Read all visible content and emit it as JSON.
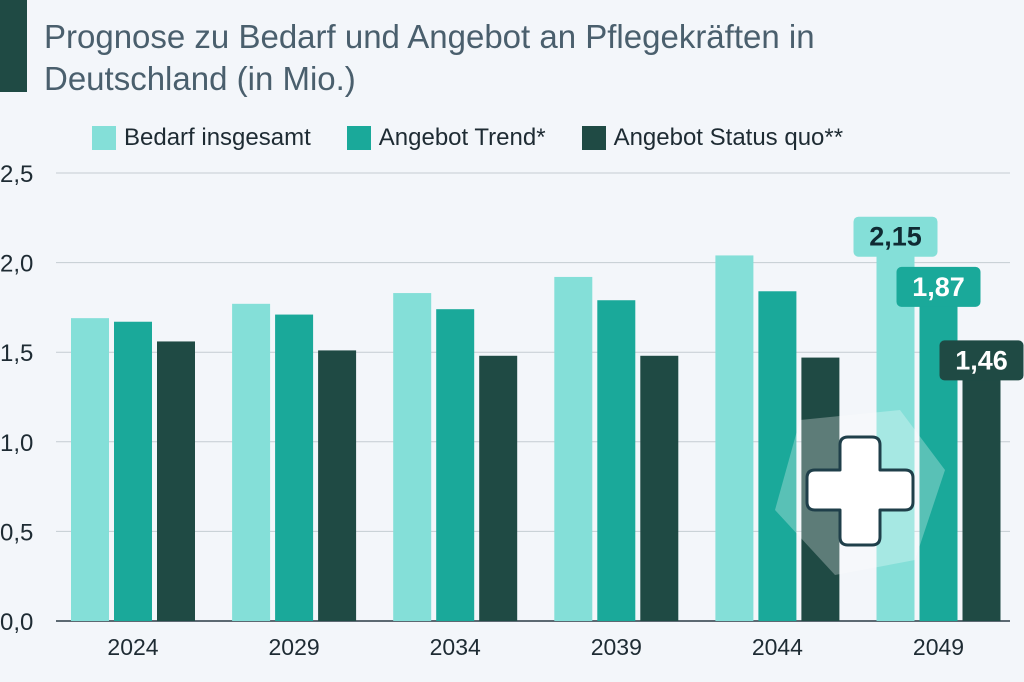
{
  "subtitle": "Prognose zu Bedarf und Angebot an Pflegekräften in Deutschland (in Mio.)",
  "legend": [
    {
      "label": "Bedarf insgesamt",
      "color": "#84dfd8"
    },
    {
      "label": "Angebot Trend*",
      "color": "#1aa99a"
    },
    {
      "label": "Angebot Status quo**",
      "color": "#1f4a44"
    }
  ],
  "accent_color": "#1f4a44",
  "icon": "medical-cross-icon",
  "chart_data": {
    "type": "bar",
    "categories": [
      "2024",
      "2029",
      "2034",
      "2039",
      "2044",
      "2049"
    ],
    "series": [
      {
        "name": "Bedarf insgesamt",
        "color": "#84dfd8",
        "values": [
          1.69,
          1.77,
          1.83,
          1.92,
          2.04,
          2.15
        ]
      },
      {
        "name": "Angebot Trend*",
        "color": "#1aa99a",
        "values": [
          1.67,
          1.71,
          1.74,
          1.79,
          1.84,
          1.87
        ]
      },
      {
        "name": "Angebot Status quo**",
        "color": "#1f4a44",
        "values": [
          1.56,
          1.51,
          1.48,
          1.48,
          1.47,
          1.46
        ]
      }
    ],
    "ylim": [
      0,
      2.5
    ],
    "yticks": [
      "0,0",
      "0,5",
      "1,0",
      "1,5",
      "2,0",
      "2,5"
    ],
    "data_labels": [
      {
        "category": "2049",
        "series": "Bedarf insgesamt",
        "text": "2,15"
      },
      {
        "category": "2049",
        "series": "Angebot Trend*",
        "text": "1,87"
      },
      {
        "category": "2049",
        "series": "Angebot Status quo**",
        "text": "1,46"
      }
    ],
    "grid": true,
    "legend_position": "top"
  }
}
